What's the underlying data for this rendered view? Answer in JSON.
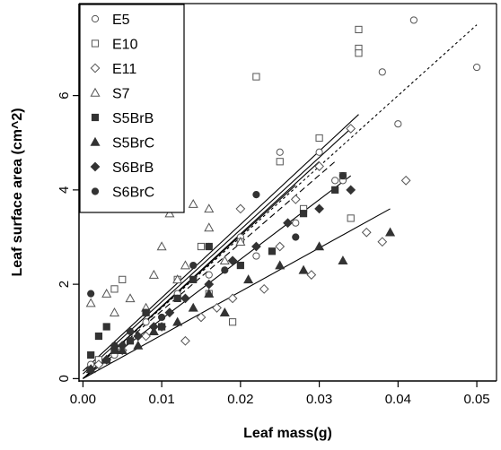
{
  "colors": {
    "background": "#ffffff",
    "ink": "#000000",
    "marker": "#333333"
  },
  "chart_data": {
    "type": "scatter",
    "title": "",
    "xlabel": "Leaf mass(g)",
    "ylabel": "Leaf surface area (cm^2)",
    "xlim": [
      -0.0005,
      0.0525
    ],
    "ylim": [
      -0.05,
      7.95
    ],
    "x_ticks": [
      0.0,
      0.01,
      0.02,
      0.03,
      0.04,
      0.05
    ],
    "x_tick_labels": [
      "0.00",
      "0.01",
      "0.02",
      "0.03",
      "0.04",
      "0.05"
    ],
    "y_ticks": [
      0,
      2,
      4,
      6
    ],
    "y_tick_labels": [
      "0",
      "2",
      "4",
      "6"
    ],
    "grid": false,
    "legend_position": "top-left",
    "series": [
      {
        "name": "E5",
        "marker": "circle-open",
        "x": [
          0.001,
          0.004,
          0.008,
          0.012,
          0.016,
          0.02,
          0.022,
          0.025,
          0.027,
          0.03,
          0.032,
          0.033,
          0.038,
          0.04,
          0.042,
          0.05
        ],
        "y": [
          0.3,
          0.5,
          1.2,
          1.8,
          2.2,
          3.0,
          2.6,
          4.8,
          3.3,
          4.8,
          4.2,
          4.2,
          6.5,
          5.4,
          7.6,
          6.6
        ],
        "fit": [
          0.0,
          0.16,
          0.035,
          5.6,
          "solid"
        ]
      },
      {
        "name": "E10",
        "marker": "square-open",
        "x": [
          0.002,
          0.004,
          0.005,
          0.008,
          0.012,
          0.015,
          0.016,
          0.019,
          0.02,
          0.022,
          0.025,
          0.028,
          0.03,
          0.033,
          0.034,
          0.035,
          0.035,
          0.035
        ],
        "y": [
          0.4,
          1.9,
          2.1,
          1.4,
          2.1,
          2.8,
          1.8,
          1.2,
          2.9,
          6.4,
          4.6,
          3.6,
          5.1,
          4.3,
          3.4,
          7.4,
          7.0,
          6.9
        ],
        "fit": [
          0.0,
          0.0,
          0.05,
          7.5,
          "dotted"
        ]
      },
      {
        "name": "E11",
        "marker": "diamond-open",
        "x": [
          0.002,
          0.005,
          0.008,
          0.01,
          0.013,
          0.015,
          0.017,
          0.019,
          0.02,
          0.023,
          0.025,
          0.027,
          0.029,
          0.03,
          0.034,
          0.036,
          0.038,
          0.041
        ],
        "y": [
          0.3,
          0.6,
          0.9,
          1.1,
          0.8,
          1.3,
          1.5,
          1.7,
          3.6,
          1.9,
          2.8,
          3.8,
          2.2,
          4.5,
          5.3,
          3.1,
          2.9,
          4.2
        ],
        "fit": [
          0.0,
          0.1,
          0.034,
          5.3,
          "solid"
        ]
      },
      {
        "name": "S7",
        "marker": "triangle-open",
        "x": [
          0.001,
          0.003,
          0.004,
          0.006,
          0.008,
          0.009,
          0.01,
          0.011,
          0.012,
          0.013,
          0.014,
          0.016,
          0.016,
          0.018,
          0.02
        ],
        "y": [
          1.6,
          1.8,
          1.4,
          1.7,
          1.5,
          2.2,
          2.8,
          3.5,
          2.1,
          2.4,
          3.7,
          3.2,
          3.6,
          2.5,
          2.9
        ],
        "fit": [
          0.0,
          0.0,
          0.03,
          4.6,
          "solid"
        ]
      },
      {
        "name": "S5BrB",
        "marker": "square-filled",
        "x": [
          0.001,
          0.002,
          0.003,
          0.004,
          0.006,
          0.008,
          0.01,
          0.012,
          0.014,
          0.016,
          0.02,
          0.024,
          0.028,
          0.032
        ],
        "y": [
          0.5,
          0.9,
          1.1,
          0.6,
          0.8,
          1.4,
          1.1,
          1.7,
          2.1,
          2.8,
          2.4,
          2.7,
          3.5,
          4.0
        ],
        "fit": [
          0.0,
          0.0,
          0.032,
          4.6,
          "dashed"
        ]
      },
      {
        "name": "S5BrC",
        "marker": "triangle-filled",
        "x": [
          0.001,
          0.003,
          0.005,
          0.007,
          0.009,
          0.012,
          0.014,
          0.016,
          0.018,
          0.021,
          0.025,
          0.028,
          0.03,
          0.033,
          0.039
        ],
        "y": [
          0.2,
          0.4,
          0.6,
          0.7,
          1.0,
          1.2,
          1.5,
          1.8,
          1.4,
          2.1,
          2.4,
          2.3,
          2.8,
          2.5,
          3.1
        ],
        "fit": [
          0.0,
          0.0,
          0.039,
          3.6,
          "solid"
        ]
      },
      {
        "name": "S6BrB",
        "marker": "diamond-filled",
        "x": [
          0.001,
          0.003,
          0.005,
          0.007,
          0.009,
          0.011,
          0.013,
          0.016,
          0.019,
          0.022,
          0.026,
          0.03,
          0.034
        ],
        "y": [
          0.2,
          0.4,
          0.7,
          0.9,
          1.1,
          1.4,
          1.7,
          2.0,
          2.5,
          2.8,
          3.3,
          3.6,
          4.0
        ],
        "fit": [
          0.0,
          0.0,
          0.034,
          4.3,
          "solid"
        ]
      },
      {
        "name": "S6BrC",
        "marker": "circle-filled",
        "x": [
          0.001,
          0.004,
          0.006,
          0.008,
          0.01,
          0.012,
          0.014,
          0.016,
          0.018,
          0.022,
          0.027,
          0.033
        ],
        "y": [
          1.8,
          0.7,
          1.0,
          1.4,
          1.3,
          1.7,
          2.4,
          2.8,
          2.3,
          3.9,
          3.0,
          4.3
        ],
        "fit": [
          0.0,
          0.0,
          0.027,
          4.1,
          "solid"
        ]
      }
    ]
  }
}
